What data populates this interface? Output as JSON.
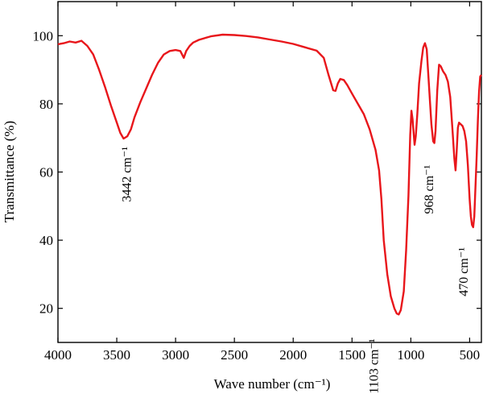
{
  "chart_data": {
    "type": "line",
    "xlabel": "Wave number (cm⁻¹)",
    "ylabel": "Transmittance (%)",
    "xlim": [
      4000,
      400
    ],
    "ylim": [
      10,
      110
    ],
    "x_reversed": true,
    "grid": false,
    "x_ticks": [
      4000,
      3500,
      3000,
      2500,
      2000,
      1500,
      1000,
      500
    ],
    "y_ticks": [
      20,
      40,
      60,
      80,
      100
    ],
    "series": [
      {
        "color": "#e8161b",
        "points": [
          [
            4000,
            97.5
          ],
          [
            3950,
            97.8
          ],
          [
            3900,
            98.3
          ],
          [
            3850,
            98.0
          ],
          [
            3800,
            98.5
          ],
          [
            3750,
            97.0
          ],
          [
            3700,
            94.5
          ],
          [
            3650,
            90.0
          ],
          [
            3600,
            85.0
          ],
          [
            3550,
            79.5
          ],
          [
            3500,
            74.5
          ],
          [
            3470,
            71.5
          ],
          [
            3442,
            69.8
          ],
          [
            3410,
            70.5
          ],
          [
            3380,
            72.5
          ],
          [
            3350,
            76.0
          ],
          [
            3300,
            80.5
          ],
          [
            3250,
            84.5
          ],
          [
            3200,
            88.5
          ],
          [
            3150,
            92.0
          ],
          [
            3100,
            94.5
          ],
          [
            3050,
            95.5
          ],
          [
            3000,
            95.8
          ],
          [
            2960,
            95.5
          ],
          [
            2930,
            93.5
          ],
          [
            2910,
            95.5
          ],
          [
            2880,
            97.0
          ],
          [
            2850,
            98.0
          ],
          [
            2800,
            98.8
          ],
          [
            2700,
            99.8
          ],
          [
            2600,
            100.3
          ],
          [
            2500,
            100.2
          ],
          [
            2400,
            99.9
          ],
          [
            2300,
            99.5
          ],
          [
            2200,
            98.9
          ],
          [
            2100,
            98.3
          ],
          [
            2000,
            97.6
          ],
          [
            1900,
            96.6
          ],
          [
            1800,
            95.6
          ],
          [
            1740,
            93.5
          ],
          [
            1700,
            88.5
          ],
          [
            1660,
            84.0
          ],
          [
            1640,
            83.8
          ],
          [
            1620,
            86.0
          ],
          [
            1600,
            87.3
          ],
          [
            1570,
            87.0
          ],
          [
            1540,
            85.5
          ],
          [
            1500,
            83.0
          ],
          [
            1450,
            80.0
          ],
          [
            1400,
            77.0
          ],
          [
            1350,
            72.5
          ],
          [
            1300,
            66.5
          ],
          [
            1270,
            60.5
          ],
          [
            1250,
            52.0
          ],
          [
            1230,
            40.0
          ],
          [
            1200,
            30.0
          ],
          [
            1170,
            23.5
          ],
          [
            1140,
            20.0
          ],
          [
            1120,
            18.5
          ],
          [
            1103,
            18.2
          ],
          [
            1085,
            19.5
          ],
          [
            1060,
            25.0
          ],
          [
            1040,
            37.0
          ],
          [
            1020,
            53.0
          ],
          [
            1005,
            71.0
          ],
          [
            995,
            78.0
          ],
          [
            985,
            75.5
          ],
          [
            975,
            71.0
          ],
          [
            968,
            68.0
          ],
          [
            958,
            70.5
          ],
          [
            945,
            77.0
          ],
          [
            930,
            86.0
          ],
          [
            910,
            92.5
          ],
          [
            895,
            96.5
          ],
          [
            880,
            97.8
          ],
          [
            865,
            96.0
          ],
          [
            845,
            85.0
          ],
          [
            825,
            74.0
          ],
          [
            810,
            69.0
          ],
          [
            800,
            68.5
          ],
          [
            790,
            72.0
          ],
          [
            775,
            84.0
          ],
          [
            760,
            91.5
          ],
          [
            745,
            91.0
          ],
          [
            725,
            89.5
          ],
          [
            705,
            88.5
          ],
          [
            685,
            86.5
          ],
          [
            665,
            82.0
          ],
          [
            645,
            72.0
          ],
          [
            630,
            64.0
          ],
          [
            620,
            60.5
          ],
          [
            610,
            66.0
          ],
          [
            600,
            73.0
          ],
          [
            590,
            74.5
          ],
          [
            575,
            74.0
          ],
          [
            560,
            73.5
          ],
          [
            545,
            72.0
          ],
          [
            530,
            69.0
          ],
          [
            515,
            62.0
          ],
          [
            500,
            52.0
          ],
          [
            490,
            47.0
          ],
          [
            480,
            44.5
          ],
          [
            470,
            43.8
          ],
          [
            460,
            47.0
          ],
          [
            450,
            56.0
          ],
          [
            440,
            65.0
          ],
          [
            430,
            75.0
          ],
          [
            420,
            83.5
          ],
          [
            410,
            88.0
          ],
          [
            400,
            88.5
          ]
        ]
      }
    ],
    "annotations": [
      {
        "label": "3442 cm⁻¹",
        "x": 3442,
        "y": 69.8
      },
      {
        "label": "1103 cm⁻¹",
        "x": 1103,
        "y": 18.2
      },
      {
        "label": "968 cm⁻¹",
        "x": 968,
        "y": 68.0
      },
      {
        "label": "470 cm⁻¹",
        "x": 470,
        "y": 43.8
      }
    ]
  }
}
